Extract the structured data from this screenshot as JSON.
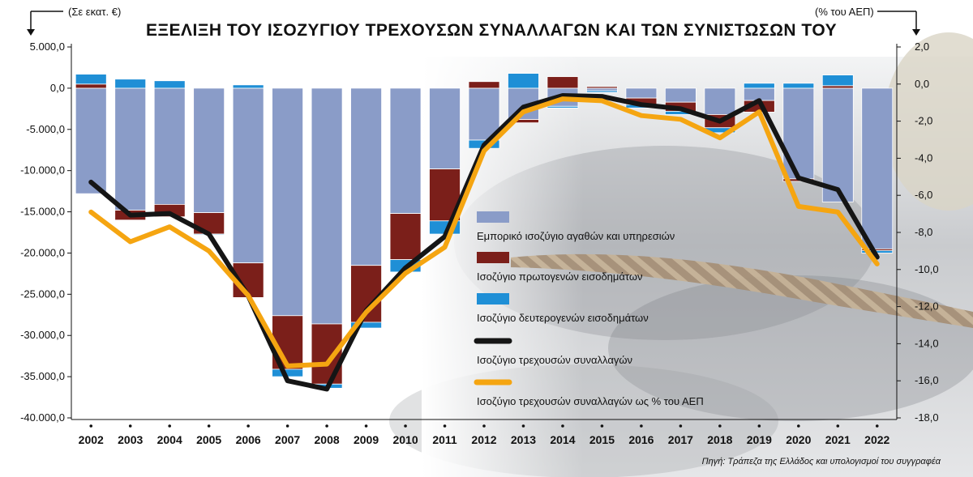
{
  "chart_data": {
    "type": "bar",
    "title": "ΕΞΕΛΙΞΗ ΤΟΥ ΙΣΟΖΥΓΙΟΥ ΤΡΕΧΟΥΣΩΝ ΣΥΝΑΛΛΑΓΩΝ ΚΑΙ ΤΩΝ ΣΥΝΙΣΤΩΣΩΝ ΤΟΥ",
    "left_unit": "(Σε εκατ. €)",
    "right_unit": "(% του ΑΕΠ)",
    "source": "Πηγή: Τράπεζα της Ελλάδος και υπολογισμοί του συγγραφέα",
    "categories": [
      "2002",
      "2003",
      "2004",
      "2005",
      "2006",
      "2007",
      "2008",
      "2009",
      "2010",
      "2011",
      "2012",
      "2013",
      "2014",
      "2015",
      "2016",
      "2017",
      "2018",
      "2019",
      "2020",
      "2021",
      "2022"
    ],
    "ylim_left": [
      -40000,
      5000
    ],
    "yticks_left": [
      "5.000,0",
      "0,0",
      "-5.000,0",
      "-10.000,0",
      "-15.000,0",
      "-20.000,0",
      "-25.000,0",
      "-30.000,0",
      "-35.000,0",
      "-40.000,0"
    ],
    "ylim_right": [
      -18,
      2
    ],
    "yticks_right": [
      "2,0",
      "0,0",
      "-2,0",
      "-4,0",
      "-6,0",
      "-8,0",
      "-10,0",
      "-12,0",
      "-14,0",
      "-16,0",
      "-18,0"
    ],
    "series": [
      {
        "name": "Εμπορικό ισοζύγιο αγαθών και υπηρεσιών",
        "kind": "bar",
        "axis": "left",
        "color": "#8a9cc8",
        "values": [
          -12800,
          -14800,
          -14100,
          -15100,
          -21200,
          -27600,
          -28600,
          -21500,
          -15200,
          -9800,
          -6300,
          -3800,
          -2200,
          -300,
          -1200,
          -1700,
          -3200,
          -1500,
          -11000,
          -13800,
          -19500
        ]
      },
      {
        "name": "Ισοζύγιο πρωτογενών εισοδημάτων",
        "kind": "bar",
        "axis": "left",
        "color": "#7b1f1a",
        "values": [
          500,
          -1200,
          -1500,
          -2600,
          -4200,
          -6500,
          -7300,
          -6900,
          -5600,
          -6300,
          800,
          -400,
          1400,
          200,
          -800,
          -1100,
          -1600,
          -1400,
          -300,
          300,
          -200
        ]
      },
      {
        "name": "Ισοζύγιο δευτερογενών εισοδημάτων",
        "kind": "bar",
        "axis": "left",
        "color": "#1f8fd6",
        "values": [
          1200,
          1100,
          900,
          -100,
          400,
          -900,
          -500,
          -700,
          -1500,
          -1600,
          -1000,
          1800,
          -200,
          -200,
          -400,
          -400,
          -600,
          600,
          600,
          1300,
          -300
        ]
      },
      {
        "name": "Ισοζύγιο τρεχουσών συναλλαγών",
        "kind": "line",
        "axis": "left",
        "color": "#151515",
        "values": [
          -11400,
          -15400,
          -15200,
          -17700,
          -25200,
          -35500,
          -36500,
          -27000,
          -21800,
          -18000,
          -6900,
          -2300,
          -900,
          -1000,
          -2000,
          -2500,
          -4000,
          -1500,
          -10900,
          -12300,
          -20500
        ]
      },
      {
        "name": "Ισοζύγιο τρεχουσών συναλλαγών ως % του ΑΕΠ",
        "kind": "line",
        "axis": "right",
        "color": "#f5a511",
        "values": [
          -6.9,
          -8.5,
          -7.7,
          -9.0,
          -11.4,
          -15.2,
          -15.1,
          -12.3,
          -10.2,
          -8.8,
          -3.6,
          -1.5,
          -0.8,
          -0.9,
          -1.7,
          -1.9,
          -2.9,
          -1.5,
          -6.6,
          -6.9,
          -9.7
        ]
      }
    ]
  }
}
